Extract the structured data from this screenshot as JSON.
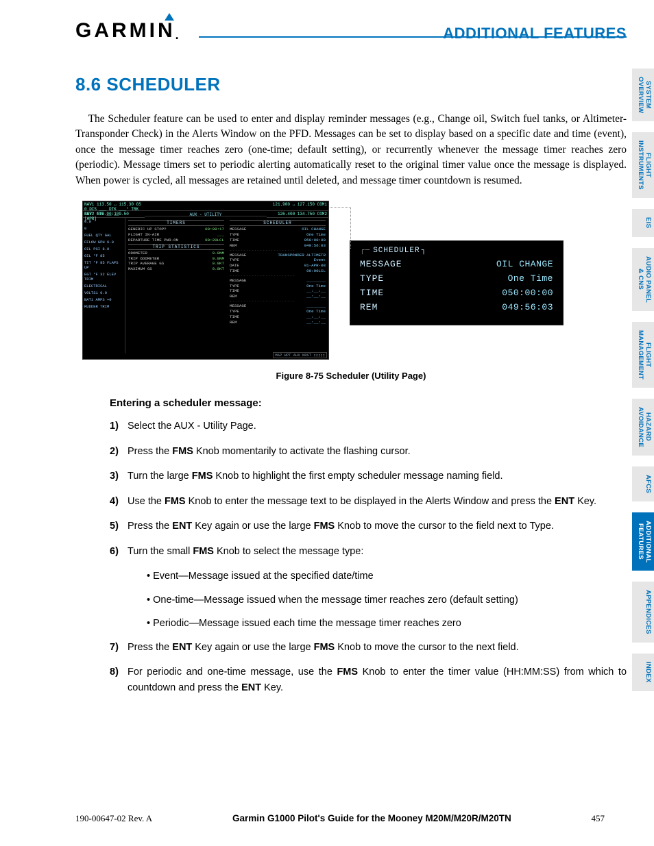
{
  "header": {
    "brand": "GARMIN",
    "section_title": "ADDITIONAL FEATURES"
  },
  "heading": "8.6  SCHEDULER",
  "paragraph": "The Scheduler feature can be used to enter and display reminder messages (e.g., Change oil, Switch fuel tanks, or Altimeter-Transponder Check) in the Alerts Window on the PFD.  Messages can be set to display based on a specific date and time (event), once the message timer reaches zero (one-time; default setting), or recurrently whenever the message timer reaches zero (periodic).  Message timers set to periodic alerting automatically reset to the original timer value once the message is displayed.  When power is cycled, all messages are retained until deleted, and message timer countdown is resumed.",
  "mfd": {
    "nav1": "NAV1 113.50 ↔ 115.30  GS 0  DIS ___  DTK ___°  TRK 357°  ETE __:__",
    "com1": "121.900 ↔ 127.150 COM1",
    "nav2": "NAV2 109.90    109.50 [APR]",
    "com2": "126.400    134.750 COM2",
    "page": "AUX - UTILITY",
    "timers_hdr": "TIMERS",
    "timers": [
      {
        "k": "GENERIC",
        "m": "UP   STOP?",
        "v": "00:09:17"
      },
      {
        "k": "FLIGHT",
        "m": "IN-AIR",
        "v": "___"
      },
      {
        "k": "DEPARTURE TIME",
        "m": "PWR-ON",
        "v": "00:20LCL"
      }
    ],
    "trip_hdr": "TRIP STATISTICS",
    "trip": [
      {
        "k": "ODOMETER",
        "v": "0.0NM"
      },
      {
        "k": "TRIP ODOMETER",
        "v": "0.0NM"
      },
      {
        "k": "TRIP AVERAGE GS",
        "v": "0.0KT"
      },
      {
        "k": "MAXIMUM GS",
        "v": "0.0KT"
      }
    ],
    "sched_hdr": "SCHEDULER",
    "sched": [
      {
        "k": "MESSAGE",
        "v": "OIL CHANGE"
      },
      {
        "k": "TYPE",
        "v": "One Time"
      },
      {
        "k": "TIME",
        "v": "050:00:00"
      },
      {
        "k": "REM",
        "v": "049:56:03"
      }
    ],
    "sched2": [
      {
        "k": "MESSAGE",
        "v": "TRANSPONDER ALTIMETR"
      },
      {
        "k": "TYPE",
        "v": "Event"
      },
      {
        "k": "DATE",
        "v": "01-APR-08"
      },
      {
        "k": "TIME",
        "v": "00:00LCL"
      }
    ],
    "sched3": [
      {
        "k": "MESSAGE",
        "v": "________"
      },
      {
        "k": "TYPE",
        "v": "One Time"
      },
      {
        "k": "TIME",
        "v": "__:__:__"
      },
      {
        "k": "REM",
        "v": "__:__:__"
      }
    ],
    "eis_labels": [
      "0.0",
      "0",
      "FUEL QTY GAL",
      "FFLOW GPH  6.0",
      "OIL PSI     8.0",
      "OIL °F     85",
      "TIT °F  85  FLAPS UP",
      "EGT °F  32  ELEV TRIM",
      "ELECTRICAL",
      "VOLTS1   0.0",
      "BAT1 AMPS  +0",
      "RUDDER TRIM"
    ],
    "bottom": "MAP WPT AUX NRST  ▯▯▯▯▯"
  },
  "zoom": {
    "title": "SCHEDULER",
    "rows": [
      {
        "k": "MESSAGE",
        "v": "OIL CHANGE"
      },
      {
        "k": "TYPE",
        "v": "One Time"
      },
      {
        "k": "TIME",
        "v": "050:00:00"
      },
      {
        "k": "REM",
        "v": "049:56:03"
      }
    ]
  },
  "figure_caption": "Figure 8-75  Scheduler (Utility Page)",
  "procedure": {
    "title": "Entering a scheduler message:",
    "steps": [
      "Select the AUX - Utility Page.",
      "Press the <b>FMS</b> Knob momentarily to activate the flashing cursor.",
      "Turn the large <b>FMS</b> Knob to highlight the first empty scheduler message naming field.",
      "Use the <b>FMS</b> Knob to enter the message text to be displayed in the Alerts Window and press the <b>ENT</b> Key.",
      "Press the <b>ENT</b> Key again or use the large <b>FMS</b> Knob to move the cursor to the field next to Type.",
      "Turn the small <b>FMS</b> Knob to select the message type:",
      "Press the <b>ENT</b> Key again or use the large <b>FMS</b> Knob to move the cursor to the next field.",
      "For periodic and one-time message, use the <b>FMS</b> Knob to enter the timer value (HH:MM:SS) from which to countdown and press the <b>ENT</b> Key."
    ],
    "sub": [
      "Event—Message issued at the specified date/time",
      "One-time—Message issued when the message timer reaches zero (default setting)",
      "Periodic—Message issued each time the message timer reaches zero"
    ]
  },
  "tabs": [
    {
      "label": "SYSTEM\nOVERVIEW",
      "active": false
    },
    {
      "label": "FLIGHT\nINSTRUMENTS",
      "active": false
    },
    {
      "label": "EIS",
      "active": false
    },
    {
      "label": "AUDIO PANEL\n& CNS",
      "active": false
    },
    {
      "label": "FLIGHT\nMANAGEMENT",
      "active": false
    },
    {
      "label": "HAZARD\nAVOIDANCE",
      "active": false
    },
    {
      "label": "AFCS",
      "active": false
    },
    {
      "label": "ADDITIONAL\nFEATURES",
      "active": true
    },
    {
      "label": "APPENDICES",
      "active": false
    },
    {
      "label": "INDEX",
      "active": false
    }
  ],
  "footer": {
    "docid": "190-00647-02  Rev. A",
    "title": "Garmin G1000 Pilot's Guide for the Mooney M20M/M20R/M20TN",
    "page": "457"
  }
}
